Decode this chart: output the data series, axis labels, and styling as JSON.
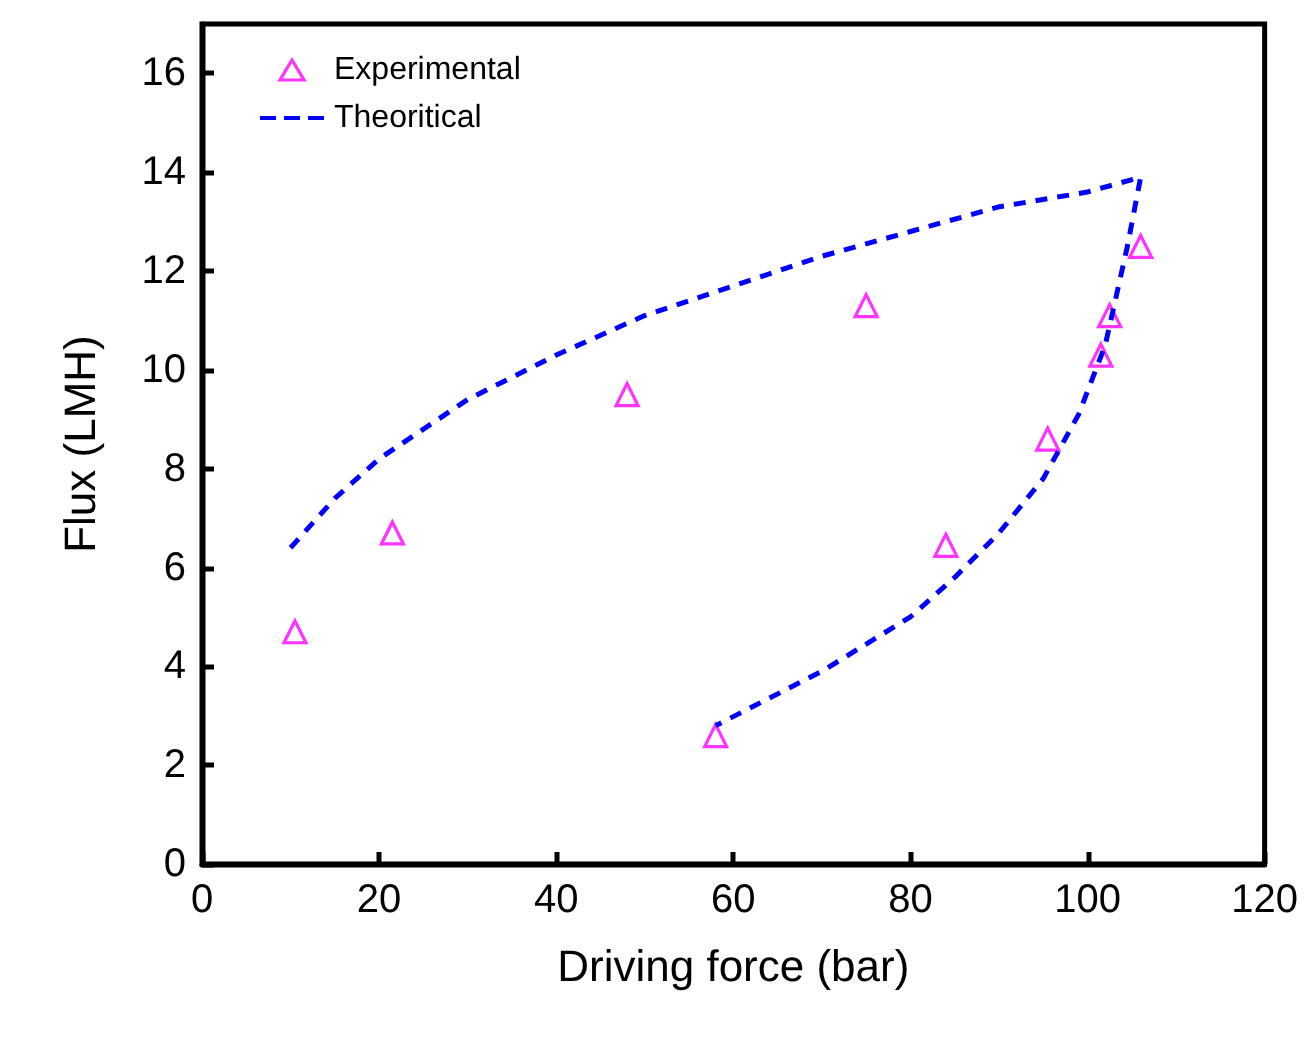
{
  "chart_data": {
    "type": "scatter",
    "xlabel": "Driving force (bar)",
    "ylabel": "Flux (LMH)",
    "xlim": [
      0,
      120
    ],
    "xticks": [
      0,
      20,
      40,
      60,
      80,
      100,
      120
    ],
    "ylim": [
      0,
      17
    ],
    "yticks": [
      0,
      2,
      4,
      6,
      8,
      10,
      12,
      14,
      16
    ],
    "legend": "top left",
    "grid": false,
    "series": [
      {
        "name": "Experimental",
        "marker": "triangle",
        "color": "#ff00ff",
        "x": [
          10.5,
          21.5,
          48,
          75,
          58,
          84,
          95.5,
          101.5,
          102.5,
          106
        ],
        "values": [
          4.7,
          6.7,
          9.5,
          11.3,
          2.6,
          6.45,
          8.6,
          10.3,
          11.1,
          12.5
        ]
      },
      {
        "name": "Theoritical",
        "type": "line",
        "marker": "none",
        "line_style": "dashed",
        "color": "#0000ff",
        "x": [
          10,
          15,
          20,
          30,
          40,
          50,
          60,
          70,
          80,
          90,
          100,
          106,
          104.5,
          102,
          99,
          95,
          90,
          85,
          80,
          70,
          58
        ],
        "values": [
          6.4,
          7.4,
          8.2,
          9.4,
          10.3,
          11.1,
          11.7,
          12.3,
          12.8,
          13.3,
          13.6,
          13.9,
          12.5,
          10.5,
          9.1,
          7.8,
          6.7,
          5.8,
          5.0,
          3.9,
          2.8
        ]
      }
    ]
  }
}
